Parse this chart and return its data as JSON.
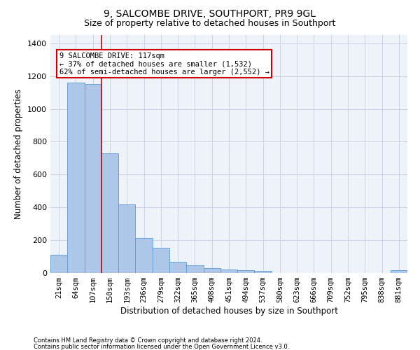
{
  "title": "9, SALCOMBE DRIVE, SOUTHPORT, PR9 9GL",
  "subtitle": "Size of property relative to detached houses in Southport",
  "xlabel": "Distribution of detached houses by size in Southport",
  "ylabel": "Number of detached properties",
  "footer_line1": "Contains HM Land Registry data © Crown copyright and database right 2024.",
  "footer_line2": "Contains public sector information licensed under the Open Government Licence v3.0.",
  "categories": [
    "21sqm",
    "64sqm",
    "107sqm",
    "150sqm",
    "193sqm",
    "236sqm",
    "279sqm",
    "322sqm",
    "365sqm",
    "408sqm",
    "451sqm",
    "494sqm",
    "537sqm",
    "580sqm",
    "623sqm",
    "666sqm",
    "709sqm",
    "752sqm",
    "795sqm",
    "838sqm",
    "881sqm"
  ],
  "bar_heights": [
    110,
    1160,
    1150,
    730,
    420,
    215,
    155,
    70,
    48,
    30,
    20,
    15,
    14,
    0,
    0,
    0,
    0,
    0,
    0,
    0,
    15
  ],
  "property_sqm": 117,
  "annotation_text": "9 SALCOMBE DRIVE: 117sqm\n← 37% of detached houses are smaller (1,532)\n62% of semi-detached houses are larger (2,552) →",
  "bar_color": "#aec6e8",
  "bar_edge_color": "#5b9bd5",
  "line_color": "#cc0000",
  "annotation_box_color": "#cc0000",
  "bg_color": "#eef2f9",
  "grid_color": "#c8d4e8",
  "ylim": [
    0,
    1450
  ],
  "yticks": [
    0,
    200,
    400,
    600,
    800,
    1000,
    1200,
    1400
  ],
  "line_x_index": 2.5,
  "title_fontsize": 10,
  "subtitle_fontsize": 9,
  "ylabel_fontsize": 8.5,
  "xlabel_fontsize": 8.5,
  "tick_fontsize": 7.5,
  "annot_fontsize": 7.5
}
